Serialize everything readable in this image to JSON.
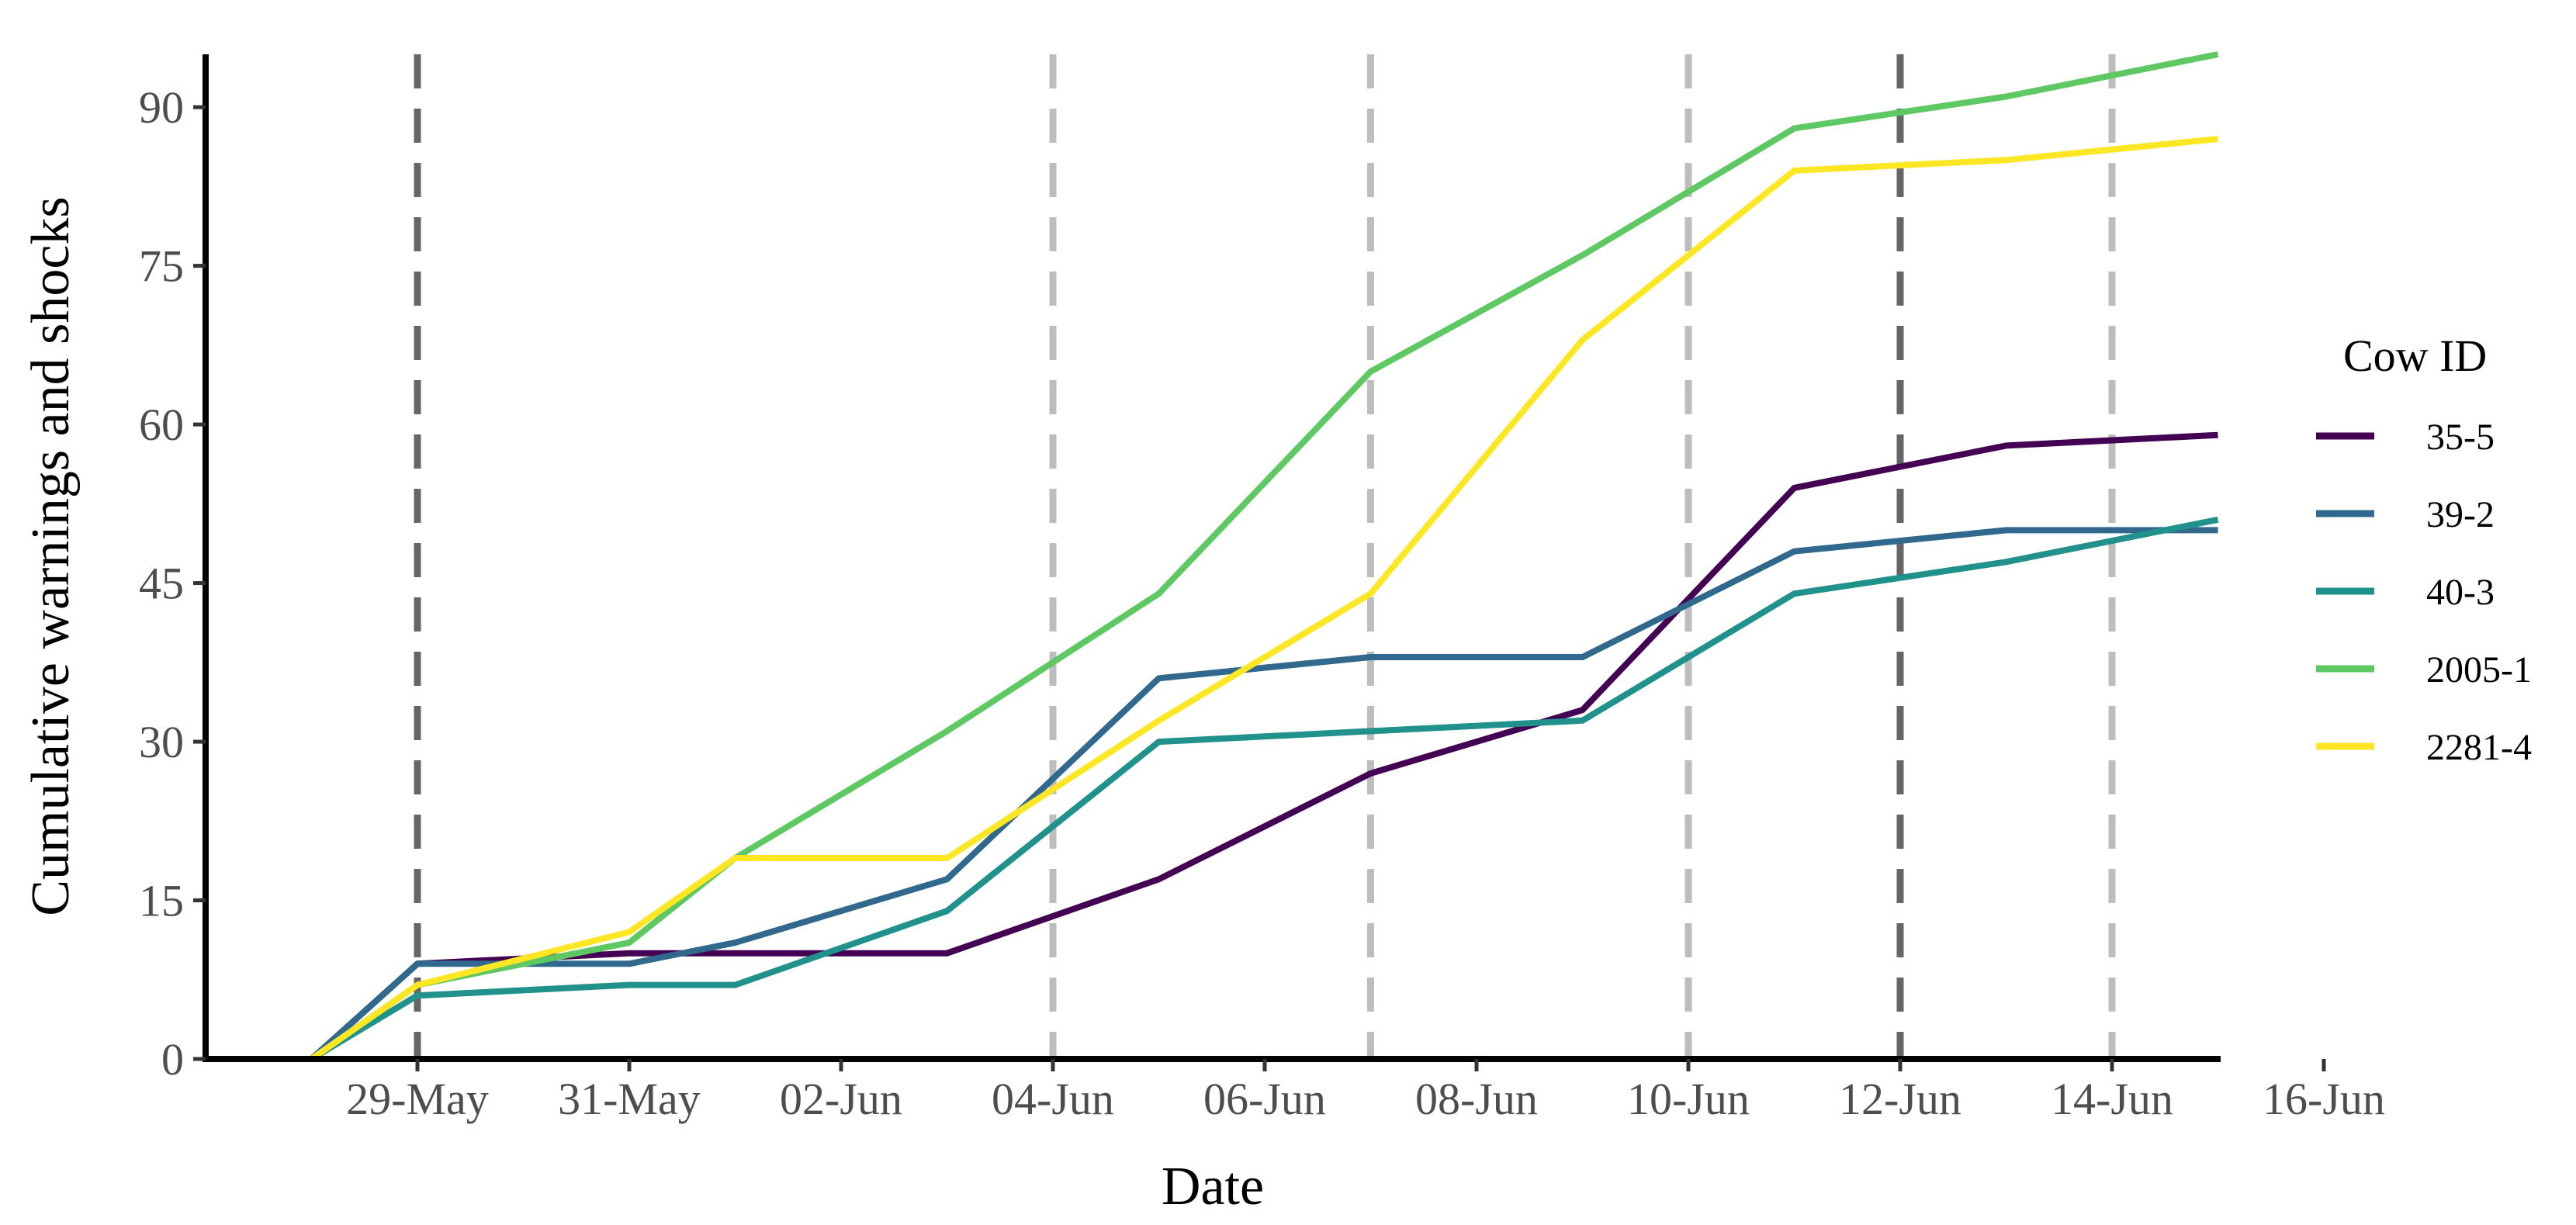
{
  "chart_data": {
    "type": "line",
    "xlabel": "Date",
    "ylabel": "Cumulative warnings and shocks",
    "ylim": [
      0,
      95
    ],
    "y_ticks": [
      0,
      15,
      30,
      45,
      60,
      75,
      90
    ],
    "xlim": [
      "2018-05-27",
      "2018-06-16"
    ],
    "x_ticks": [
      {
        "date": "2018-05-29",
        "label": "29-May"
      },
      {
        "date": "2018-05-31",
        "label": "31-May"
      },
      {
        "date": "2018-06-02",
        "label": "02-Jun"
      },
      {
        "date": "2018-06-04",
        "label": "04-Jun"
      },
      {
        "date": "2018-06-06",
        "label": "06-Jun"
      },
      {
        "date": "2018-06-08",
        "label": "08-Jun"
      },
      {
        "date": "2018-06-10",
        "label": "10-Jun"
      },
      {
        "date": "2018-06-12",
        "label": "12-Jun"
      },
      {
        "date": "2018-06-14",
        "label": "14-Jun"
      },
      {
        "date": "2018-06-16",
        "label": "16-Jun"
      }
    ],
    "grid": false,
    "legend": {
      "title": "Cow ID",
      "position": "right"
    },
    "vlines": [
      {
        "date": "2018-05-29",
        "color": "#666666"
      },
      {
        "date": "2018-06-04",
        "color": "#bdbdbd"
      },
      {
        "date": "2018-06-07",
        "color": "#bdbdbd"
      },
      {
        "date": "2018-06-10",
        "color": "#bdbdbd"
      },
      {
        "date": "2018-06-12",
        "color": "#666666"
      },
      {
        "date": "2018-06-14",
        "color": "#bdbdbd"
      }
    ],
    "x": [
      "2018-05-28",
      "2018-05-29",
      "2018-05-31",
      "2018-06-01",
      "2018-06-03",
      "2018-06-05",
      "2018-06-07",
      "2018-06-09",
      "2018-06-11",
      "2018-06-13",
      "2018-06-15"
    ],
    "series": [
      {
        "name": "35-5",
        "color": "#440154",
        "values": [
          0,
          9,
          10,
          10,
          10,
          17,
          27,
          33,
          54,
          58,
          59
        ]
      },
      {
        "name": "39-2",
        "color": "#31688E",
        "values": [
          0,
          9,
          9,
          11,
          17,
          36,
          38,
          38,
          48,
          50,
          50
        ]
      },
      {
        "name": "40-3",
        "color": "#21918C",
        "values": [
          0,
          6,
          7,
          7,
          14,
          30,
          31,
          32,
          44,
          47,
          51
        ]
      },
      {
        "name": "2005-1",
        "color": "#5EC962",
        "values": [
          0,
          7,
          11,
          19,
          31,
          44,
          65,
          76,
          88,
          91,
          95
        ]
      },
      {
        "name": "2281-4",
        "color": "#FDE725",
        "values": [
          0,
          7,
          12,
          19,
          19,
          32,
          44,
          68,
          84,
          85,
          87
        ]
      }
    ]
  }
}
